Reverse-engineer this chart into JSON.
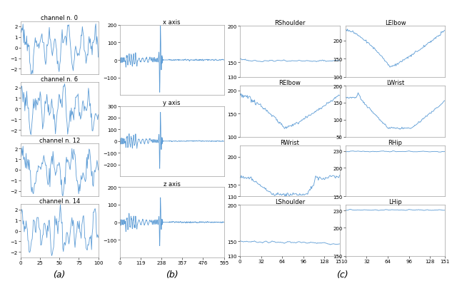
{
  "line_color": "#5b9bd5",
  "bg_color": "white",
  "label_a": "(a)",
  "label_b": "(b)",
  "label_c": "(c)",
  "panel_a_titles": [
    "channel n. 0",
    "channel n. 6",
    "channel n. 12",
    "channel n. 14"
  ],
  "panel_b_titles": [
    "x axis",
    "y axis",
    "z axis"
  ],
  "panel_c_titles": [
    "RShoulder",
    "LElbow",
    "RElbow",
    "LWrist",
    "RWrist",
    "RHip",
    "LShoulder",
    "LHip"
  ],
  "tick_label_fontsize": 5,
  "title_fontsize": 6,
  "caption_fontsize": 9,
  "line_width": 0.6
}
